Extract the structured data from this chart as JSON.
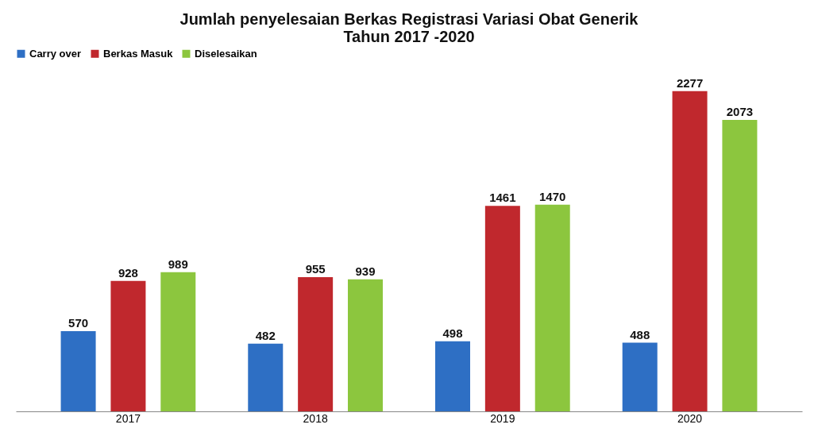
{
  "chart_data": {
    "type": "bar",
    "title": "Jumlah penyelesaian Berkas Registrasi Variasi Obat Generik\nTahun 2017 -2020",
    "categories": [
      "2017",
      "2018",
      "2019",
      "2020"
    ],
    "series": [
      {
        "name": "Carry over",
        "color": "#2e6fc4",
        "values": [
          570,
          482,
          498,
          488
        ]
      },
      {
        "name": "Berkas Masuk",
        "color": "#c0282d",
        "values": [
          928,
          955,
          1461,
          2277
        ]
      },
      {
        "name": "Diselesaikan",
        "color": "#8cc63e",
        "values": [
          989,
          939,
          1470,
          2073
        ]
      }
    ],
    "data_labels": true,
    "legend": "top",
    "grid": false,
    "tick_labels": "x"
  }
}
